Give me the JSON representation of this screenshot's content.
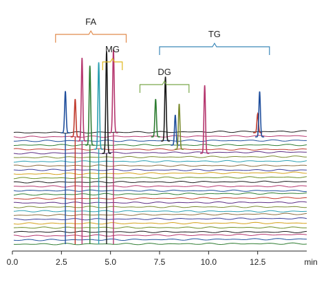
{
  "chart_data": {
    "type": "line",
    "title": "",
    "xlabel": "",
    "ylabel": "",
    "x_unit": "min",
    "xlim": [
      0,
      15
    ],
    "x_ticks": [
      {
        "value": 0,
        "label": "0.0"
      },
      {
        "value": 2.5,
        "label": "2.5"
      },
      {
        "value": 5,
        "label": "5.0"
      },
      {
        "value": 7.5,
        "label": "7.5"
      },
      {
        "value": 10,
        "label": "10.0"
      },
      {
        "value": 12.5,
        "label": "12.5"
      }
    ],
    "trace_count": 28,
    "trace_colors": [
      "#1a1a1a",
      "#b5366e",
      "#1f4e9c",
      "#2e7d32",
      "#c0392b",
      "#5b2c83",
      "#7a8a2e",
      "#2a9fb0",
      "#8c6d3f",
      "#3d3d99",
      "#d4a017",
      "#6b8e23"
    ],
    "annotations": [
      {
        "label": "FA",
        "x_start": 2.2,
        "x_end": 5.8,
        "color": "#e08a4c"
      },
      {
        "label": "MG",
        "x_start": 4.6,
        "x_end": 5.6,
        "color": "#e0b81c"
      },
      {
        "label": "DG",
        "x_start": 6.5,
        "x_end": 9.0,
        "color": "#7aa84a"
      },
      {
        "label": "TG",
        "x_start": 7.5,
        "x_end": 13.1,
        "color": "#3a87b8"
      }
    ],
    "peaks": [
      {
        "group": "FA",
        "x": 2.7,
        "height": 0.55,
        "color": "#1f4e9c"
      },
      {
        "group": "FA",
        "x": 3.2,
        "height": 0.5,
        "color": "#c0392b"
      },
      {
        "group": "FA",
        "x": 3.55,
        "height": 1.1,
        "color": "#b5366e"
      },
      {
        "group": "FA",
        "x": 3.95,
        "height": 1.05,
        "color": "#2e7d32"
      },
      {
        "group": "FA",
        "x": 4.4,
        "height": 1.15,
        "color": "#2a9fb0"
      },
      {
        "group": "MG",
        "x": 4.8,
        "height": 1.35,
        "color": "#1a1a1a"
      },
      {
        "group": "MG",
        "x": 5.15,
        "height": 1.1,
        "color": "#b5366e"
      },
      {
        "group": "DG",
        "x": 7.3,
        "height": 0.5,
        "color": "#2e7d32"
      },
      {
        "group": "DG",
        "x": 7.8,
        "height": 0.85,
        "color": "#1a1a1a"
      },
      {
        "group": "DG",
        "x": 8.3,
        "height": 0.4,
        "color": "#1f4e9c"
      },
      {
        "group": "DG",
        "x": 8.5,
        "height": 0.6,
        "color": "#7a8a2e"
      },
      {
        "group": "TG",
        "x": 9.8,
        "height": 0.9,
        "color": "#b5366e"
      },
      {
        "group": "TG",
        "x": 12.5,
        "height": 0.25,
        "color": "#c0392b"
      },
      {
        "group": "TG",
        "x": 12.6,
        "height": 0.6,
        "color": "#1f4e9c"
      }
    ],
    "grid": false,
    "legend": "none"
  }
}
